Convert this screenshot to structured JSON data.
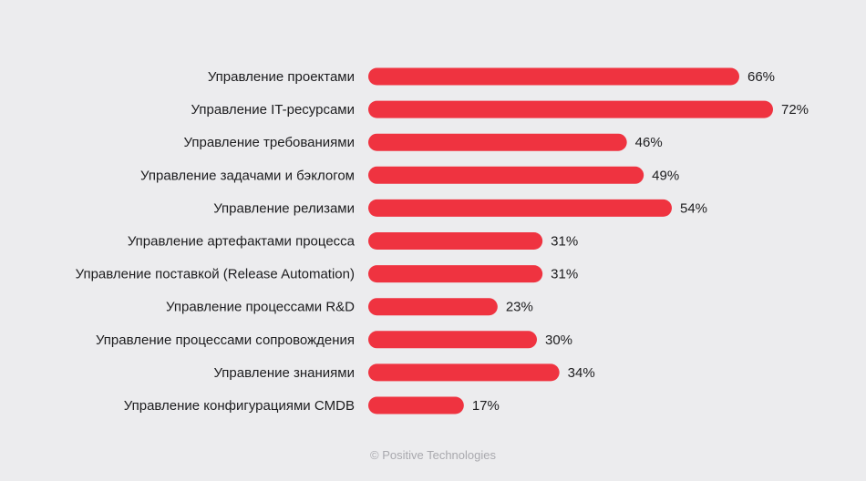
{
  "chart_data": {
    "type": "bar",
    "orientation": "horizontal",
    "categories": [
      "Управление проектами",
      "Управление IT-ресурсами",
      "Управление требованиями",
      "Управление задачами и бэклогом",
      "Управление релизами",
      "Управление артефактами процесса",
      "Управление поставкой (Release Automation)",
      "Управление процессами R&D",
      "Управление процессами сопровождения",
      "Управление знаниями",
      "Управление конфигурациями CMDB"
    ],
    "values": [
      66,
      72,
      46,
      49,
      54,
      31,
      31,
      23,
      30,
      34,
      17
    ],
    "value_labels": [
      "66%",
      "72%",
      "46%",
      "49%",
      "54%",
      "31%",
      "31%",
      "23%",
      "30%",
      "34%",
      "17%"
    ],
    "unit": "%",
    "xlim": [
      0,
      72
    ],
    "grid": false,
    "bar_color": "#ef3340"
  },
  "footer": {
    "copyright": "© Positive Technologies"
  },
  "colors": {
    "background": "#ececee",
    "bar": "#ef3340",
    "text": "#1c1c1e",
    "footer_text": "#a9a9ae"
  }
}
